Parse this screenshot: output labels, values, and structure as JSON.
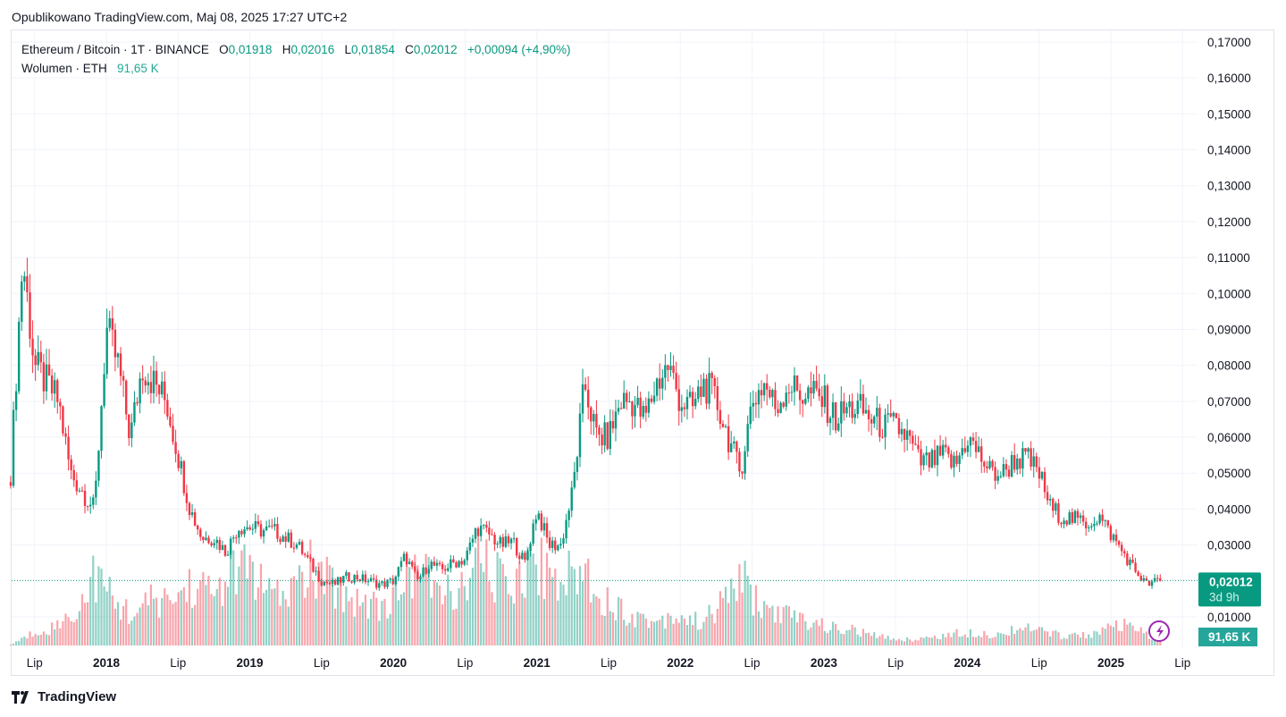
{
  "published": "Opublikowano TradingView.com, Maj 08, 2025 17:27 UTC+2",
  "legend": {
    "symbol": "Ethereum / Bitcoin · 1T · BINANCE",
    "o_label": "O",
    "o": "0,01918",
    "h_label": "H",
    "h": "0,02016",
    "l_label": "L",
    "l": "0,01854",
    "c_label": "C",
    "c": "0,02012",
    "change": "+0,00094 (+4,90%)",
    "volume_label": "Wolumen · ETH",
    "volume": "91,65 K"
  },
  "price_badge": {
    "value": "0,02012",
    "countdown": "3d 9h"
  },
  "volume_badge": "91,65 K",
  "logo": "TradingView",
  "colors": {
    "up": "#089981",
    "down": "#f23645",
    "volume_badge": "#26a69a",
    "alert": "#9c27b0"
  },
  "alert_icon": "lightning-icon",
  "chart_data": {
    "type": "candlestick",
    "interval": "1 week",
    "ylim": [
      0.005,
      0.175
    ],
    "y_ticks": [
      "0,17000",
      "0,16000",
      "0,15000",
      "0,14000",
      "0,13000",
      "0,12000",
      "0,11000",
      "0,10000",
      "0,09000",
      "0,08000",
      "0,07000",
      "0,06000",
      "0,05000",
      "0,04000",
      "0,03000",
      "0,01000"
    ],
    "y_tick_values": [
      0.17,
      0.16,
      0.15,
      0.14,
      0.13,
      0.12,
      0.11,
      0.1,
      0.09,
      0.08,
      0.07,
      0.06,
      0.05,
      0.04,
      0.03,
      0.01
    ],
    "x_ticks": [
      "Lip",
      "2018",
      "Lip",
      "2019",
      "Lip",
      "2020",
      "Lip",
      "2021",
      "Lip",
      "2022",
      "Lip",
      "2023",
      "Lip",
      "2024",
      "Lip",
      "2025",
      "Lip"
    ],
    "x_tick_dates": [
      2017.5,
      2018,
      2018.5,
      2019,
      2019.5,
      2020,
      2020.5,
      2021,
      2021.5,
      2022,
      2022.5,
      2023,
      2023.5,
      2024,
      2024.5,
      2025,
      2025.5
    ],
    "start": "2017-05",
    "end": "2025-05-08",
    "monthly_close_approx": [
      0.05,
      0.11,
      0.08,
      0.075,
      0.07,
      0.05,
      0.045,
      0.04,
      0.09,
      0.08,
      0.06,
      0.08,
      0.075,
      0.07,
      0.055,
      0.04,
      0.032,
      0.032,
      0.028,
      0.035,
      0.035,
      0.034,
      0.034,
      0.032,
      0.03,
      0.025,
      0.02,
      0.019,
      0.021,
      0.021,
      0.02,
      0.019,
      0.02,
      0.027,
      0.02,
      0.025,
      0.023,
      0.025,
      0.026,
      0.035,
      0.033,
      0.03,
      0.031,
      0.025,
      0.04,
      0.03,
      0.03,
      0.045,
      0.075,
      0.06,
      0.06,
      0.07,
      0.07,
      0.065,
      0.075,
      0.08,
      0.07,
      0.068,
      0.075,
      0.07,
      0.06,
      0.05,
      0.07,
      0.075,
      0.068,
      0.075,
      0.072,
      0.072,
      0.07,
      0.065,
      0.068,
      0.068,
      0.065,
      0.063,
      0.063,
      0.06,
      0.053,
      0.053,
      0.055,
      0.052,
      0.06,
      0.055,
      0.05,
      0.05,
      0.054,
      0.054,
      0.05,
      0.04,
      0.038,
      0.037,
      0.036,
      0.038,
      0.033,
      0.028,
      0.023,
      0.019,
      0.0201
    ],
    "monthly_volume_k_approx": [
      30,
      200,
      400,
      500,
      600,
      900,
      1300,
      2200,
      1600,
      1200,
      1000,
      1100,
      1400,
      1300,
      1500,
      1800,
      1700,
      1600,
      2000,
      2200,
      2400,
      1800,
      1400,
      1500,
      1900,
      2300,
      2000,
      1800,
      1500,
      1400,
      1300,
      1200,
      1300,
      2000,
      2600,
      1900,
      1500,
      1700,
      1600,
      2400,
      2300,
      1900,
      2000,
      2300,
      2500,
      2200,
      2000,
      2100,
      2300,
      1700,
      1300,
      1100,
      900,
      800,
      700,
      900,
      900,
      700,
      800,
      1000,
      1600,
      2100,
      1500,
      1100,
      1000,
      900,
      800,
      700,
      600,
      500,
      500,
      400,
      300,
      250,
      200,
      180,
      200,
      250,
      300,
      350,
      400,
      400,
      350,
      300,
      600,
      500,
      450,
      350,
      300,
      300,
      350,
      400,
      500,
      600,
      500,
      300,
      150
    ]
  }
}
